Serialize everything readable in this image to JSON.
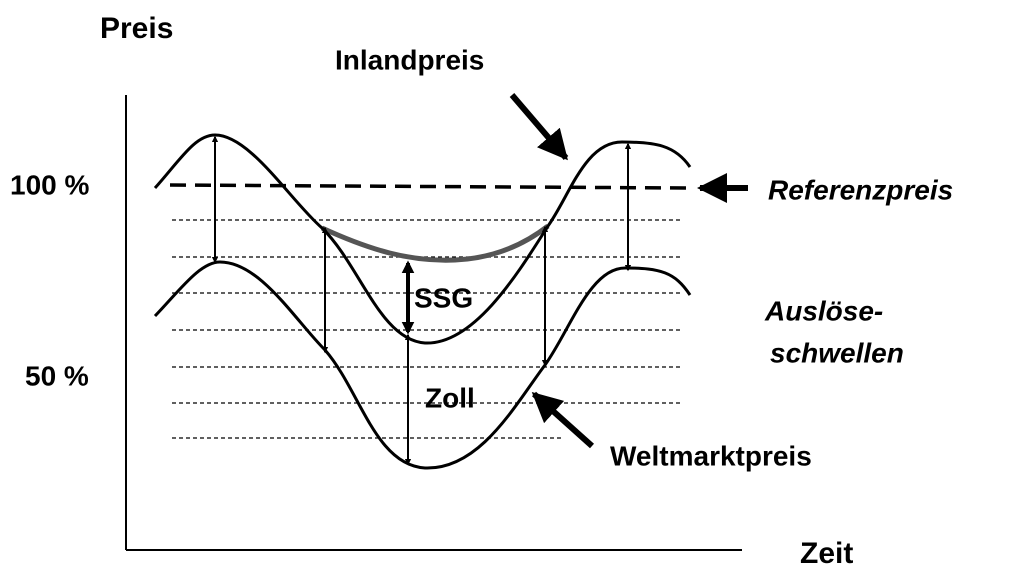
{
  "axis_labels": {
    "y": "Preis",
    "x": "Zeit"
  },
  "y_labels": [
    "100 %",
    "50 %"
  ],
  "curve_labels": {
    "domestic": "Inlandpreis",
    "world": "Weltmarktpreis",
    "reference": "Referenzpreis",
    "thresholds": [
      "Auslöse-",
      "schwellen"
    ]
  },
  "gap_labels": {
    "ssg": "SSG",
    "tariff": "Zoll"
  }
}
